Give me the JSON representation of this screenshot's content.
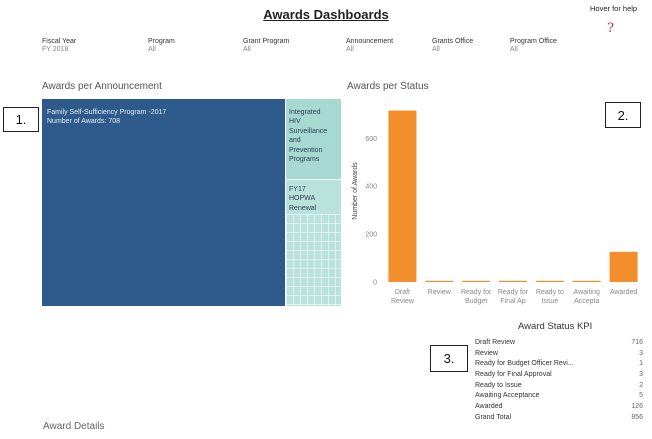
{
  "header": {
    "title": "Awards Dashboards",
    "help_text": "Hover for help",
    "help_icon": "?"
  },
  "filters": [
    {
      "label": "Fiscal Year",
      "value": "FY 2018"
    },
    {
      "label": "Program",
      "value": "All"
    },
    {
      "label": "Grant Program",
      "value": "All"
    },
    {
      "label": "Announcement",
      "value": "All"
    },
    {
      "label": "Grants Office",
      "value": "All"
    },
    {
      "label": "Program Office",
      "value": "All"
    }
  ],
  "announcement": {
    "title": "Awards per Announcement",
    "big_label_line1": "Family Self-Sufficiency Program -2017",
    "big_label_line2": "Number of Awards: 708",
    "tile_a": [
      "Integrated",
      "HIV",
      "Surveillance",
      "and",
      "Prevention",
      "Programs"
    ],
    "tile_b": [
      "FY17",
      "HOPWA",
      "Renewal"
    ],
    "colors": {
      "big": "#2e5b8b",
      "tile_a": "#a7d9d3",
      "tile_b": "#b9e2dd"
    }
  },
  "status_chart": {
    "title": "Awards per Status"
  },
  "chart_data": {
    "type": "bar",
    "categories": [
      "Draft\nReview",
      "Review",
      "Ready for\nBudget",
      "Ready for\nFinal Ap",
      "Ready to\nIssue",
      "Awaiting\nAccepta",
      "Awarded"
    ],
    "values": [
      716,
      3,
      1,
      3,
      2,
      5,
      126
    ],
    "ylabel": "Number of Awards",
    "yticks": [
      0,
      200,
      400,
      600
    ],
    "ylim": [
      0,
      760
    ],
    "color": "#f28e2b",
    "grid": false
  },
  "kpi": {
    "title": "Award Status KPI",
    "rows": [
      {
        "label": "Draft Review",
        "value": "716"
      },
      {
        "label": "Review",
        "value": "3"
      },
      {
        "label": "Ready for Budget Officer Revi...",
        "value": "1"
      },
      {
        "label": "Ready for Final Approval",
        "value": "3"
      },
      {
        "label": "Ready to Issue",
        "value": "2"
      },
      {
        "label": "Awaiting Acceptance",
        "value": "5"
      },
      {
        "label": "Awarded",
        "value": "126"
      },
      {
        "label": "Grand Total",
        "value": "856"
      }
    ]
  },
  "badges": [
    "1.",
    "2.",
    "3."
  ],
  "details": {
    "title": "Award Details"
  }
}
